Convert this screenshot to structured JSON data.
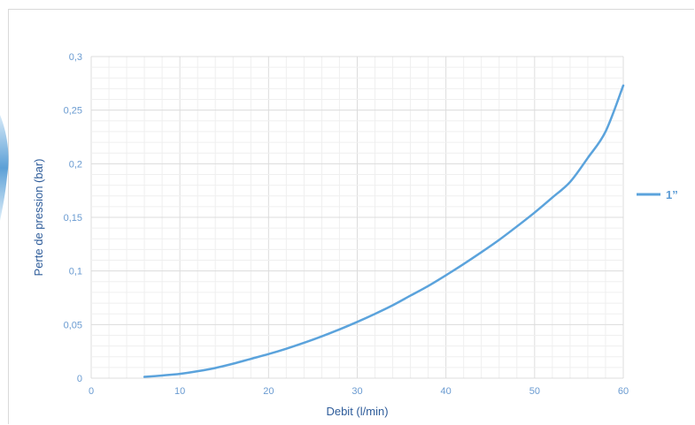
{
  "chart_data": {
    "type": "line",
    "title": "",
    "xlabel": "Debit (l/min)",
    "ylabel": "Perte de pression (bar)",
    "xlim": [
      0,
      60
    ],
    "ylim": [
      0,
      0.3
    ],
    "x_ticks": [
      "0",
      "10",
      "20",
      "30",
      "40",
      "50",
      "60"
    ],
    "y_ticks": [
      "0",
      "0,05",
      "0,1",
      "0,15",
      "0,2",
      "0,25",
      "0,3"
    ],
    "grid": true,
    "legend_position": "right",
    "series": [
      {
        "name": "1”",
        "color": "#5ba3dc",
        "x": [
          6,
          8,
          10,
          12,
          14,
          16,
          18,
          20,
          22,
          24,
          26,
          28,
          30,
          32,
          34,
          36,
          38,
          40,
          42,
          44,
          46,
          48,
          50,
          52,
          54,
          56,
          58,
          60
        ],
        "y": [
          0.0012,
          0.0025,
          0.004,
          0.0065,
          0.0095,
          0.0135,
          0.018,
          0.0225,
          0.0275,
          0.033,
          0.039,
          0.0455,
          0.0525,
          0.06,
          0.068,
          0.077,
          0.086,
          0.096,
          0.1065,
          0.1175,
          0.129,
          0.1415,
          0.1545,
          0.1685,
          0.183,
          0.2055,
          0.23,
          0.273
        ]
      }
    ]
  }
}
